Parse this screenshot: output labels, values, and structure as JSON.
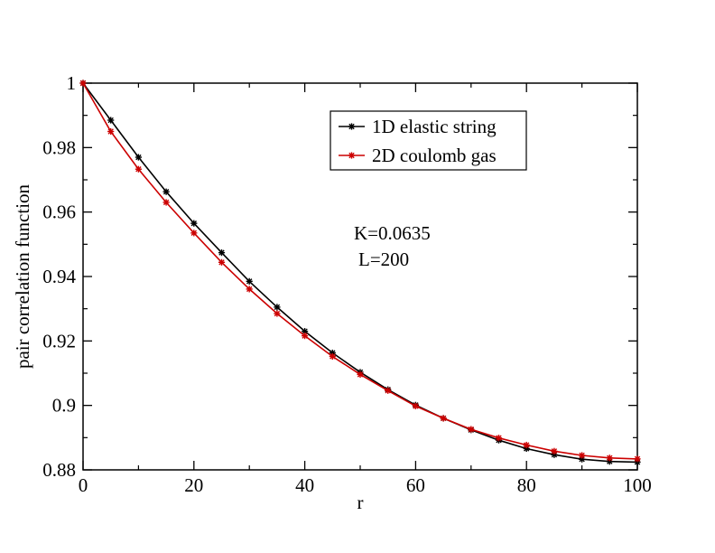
{
  "chart_data": {
    "type": "line",
    "xlabel": "r",
    "ylabel": "pair correlation function",
    "xlim": [
      0,
      100
    ],
    "ylim": [
      0.88,
      1.0
    ],
    "x_ticks": [
      "0",
      "20",
      "40",
      "60",
      "80",
      "100"
    ],
    "y_ticks": [
      "0.88",
      "0.9",
      "0.92",
      "0.94",
      "0.96",
      "0.98",
      "1"
    ],
    "grid": false,
    "legend_position": "top-right",
    "x": [
      0,
      5,
      10,
      15,
      20,
      25,
      30,
      35,
      40,
      45,
      50,
      55,
      60,
      65,
      70,
      75,
      80,
      85,
      90,
      95,
      100
    ],
    "series": [
      {
        "name": "1D elastic string",
        "color": "#000000",
        "marker": "star",
        "values": [
          1.0,
          0.9885,
          0.977,
          0.9663,
          0.9565,
          0.9474,
          0.9385,
          0.9305,
          0.923,
          0.9163,
          0.9103,
          0.9049,
          0.9001,
          0.896,
          0.8924,
          0.8892,
          0.8866,
          0.8847,
          0.8833,
          0.8826,
          0.8824
        ]
      },
      {
        "name": "2D coulomb gas",
        "color": "#cc0000",
        "marker": "star",
        "values": [
          1.0,
          0.985,
          0.9733,
          0.963,
          0.9535,
          0.9444,
          0.9361,
          0.9285,
          0.9216,
          0.9152,
          0.9096,
          0.9046,
          0.8998,
          0.896,
          0.8926,
          0.8899,
          0.8877,
          0.8858,
          0.8845,
          0.8837,
          0.8834
        ]
      }
    ],
    "annotations": [
      "K=0.0635",
      "L=200"
    ]
  }
}
